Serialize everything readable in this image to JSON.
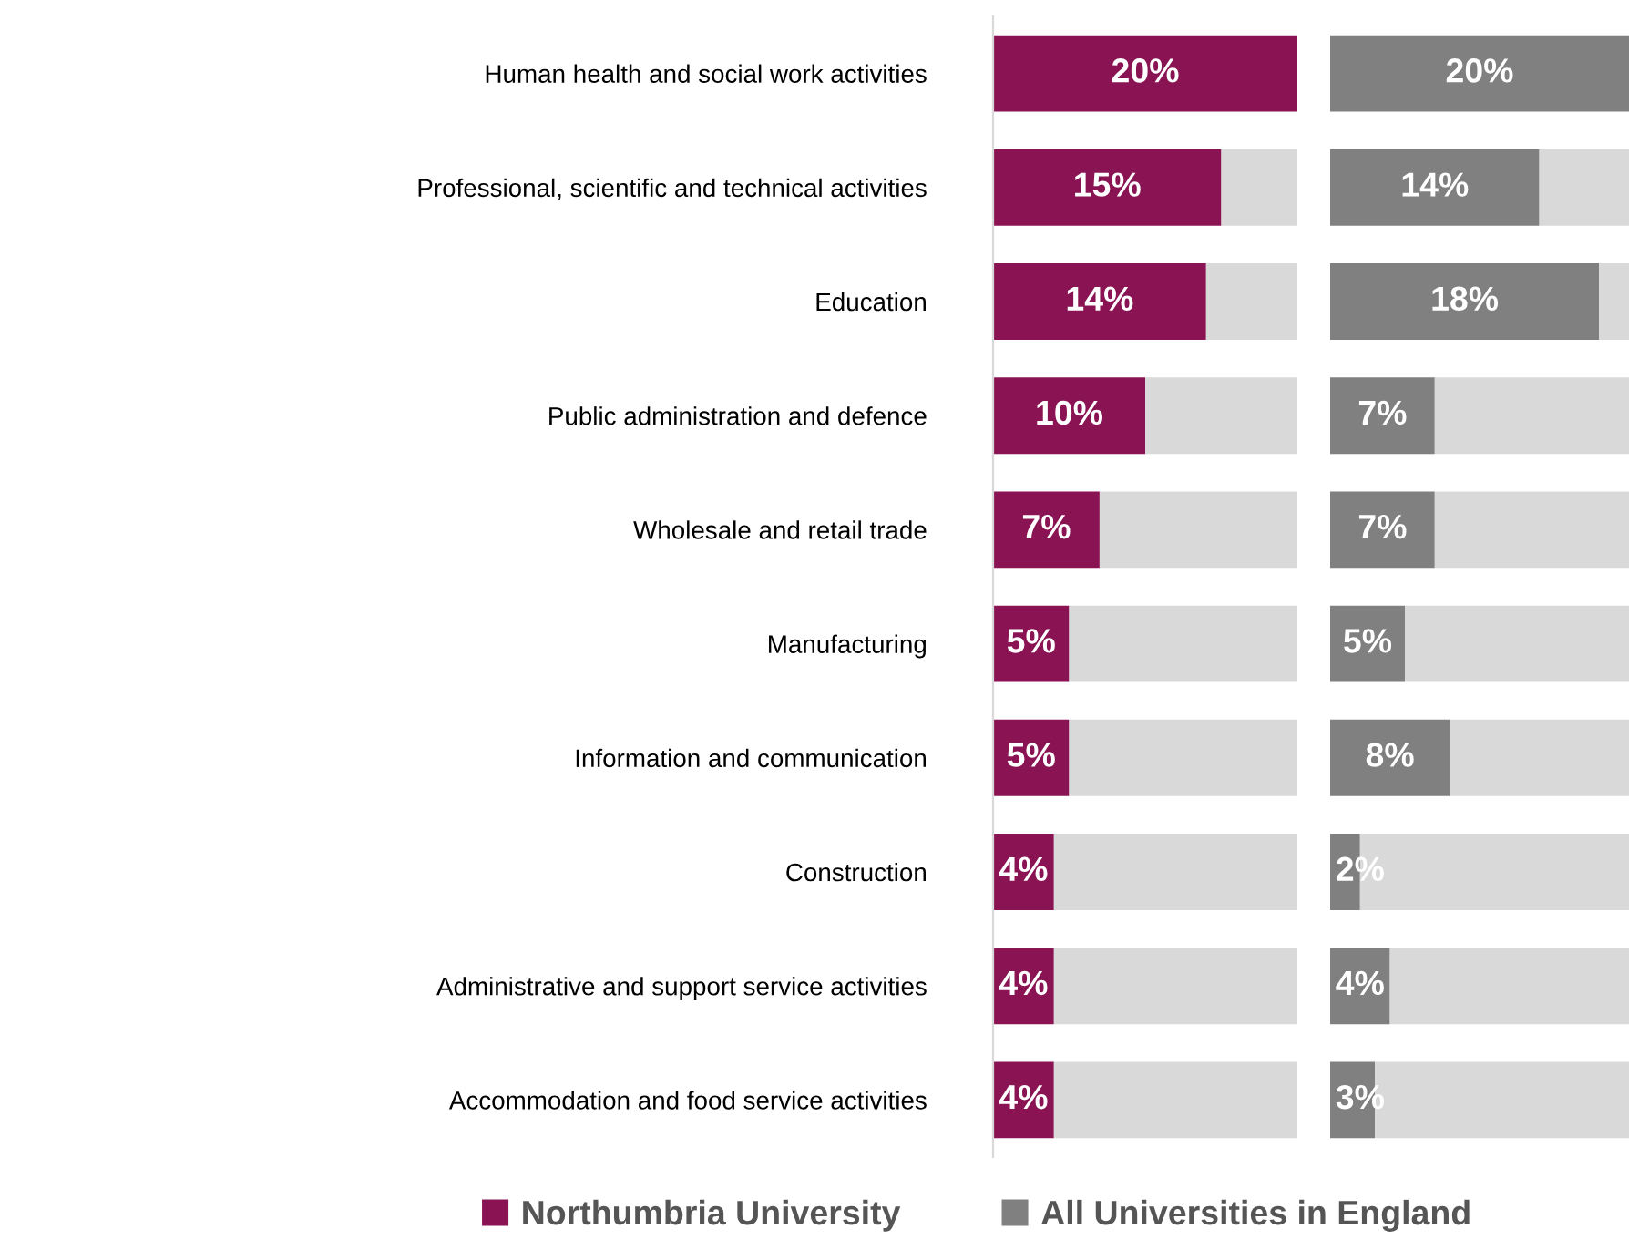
{
  "chart_data": [
    {
      "type": "bar",
      "orientation": "horizontal",
      "stacked": true,
      "categories": [
        "Human health and social work activities",
        "Professional, scientific and technical activities",
        "Education",
        "Public administration and defence",
        "Wholesale and retail trade",
        "Manufacturing",
        "Information and communication",
        "Construction",
        "Administrative and support service activities",
        "Accommodation and food service activities"
      ],
      "xlim": [
        0,
        20
      ],
      "tick_labels": "y",
      "legend": "bottom",
      "series": [
        {
          "name": "Northumbria University",
          "color": "#8a1453",
          "values": [
            20,
            15,
            14,
            10,
            7,
            5,
            5,
            4,
            4,
            4
          ],
          "value_labels": [
            "20%",
            "15%",
            "14%",
            "10%",
            "7%",
            "5%",
            "5%",
            "4%",
            "4%",
            "4%"
          ]
        },
        {
          "color": "#d9d9d9",
          "values": [
            0,
            5,
            6,
            10,
            13,
            15,
            15,
            16,
            16,
            16
          ]
        }
      ]
    },
    {
      "type": "bar",
      "orientation": "horizontal",
      "stacked": true,
      "categories": [
        null,
        null,
        null,
        null,
        null,
        null,
        null,
        null,
        null,
        null
      ],
      "xlim": [
        0,
        20
      ],
      "tick_labels": false,
      "legend": "bottom",
      "series": [
        {
          "name": "All Universities in England",
          "color": "#808080",
          "values": [
            20,
            14,
            18,
            7,
            7,
            5,
            8,
            2,
            4,
            3
          ],
          "value_labels": [
            "20%",
            "14%",
            "18%",
            "7%",
            "7%",
            "5%",
            "8%",
            "2%",
            "4%",
            "3%"
          ]
        },
        {
          "color": "#d9d9d9",
          "values": [
            0,
            6,
            2,
            13,
            13,
            15,
            12,
            18,
            16,
            17
          ]
        }
      ]
    }
  ]
}
